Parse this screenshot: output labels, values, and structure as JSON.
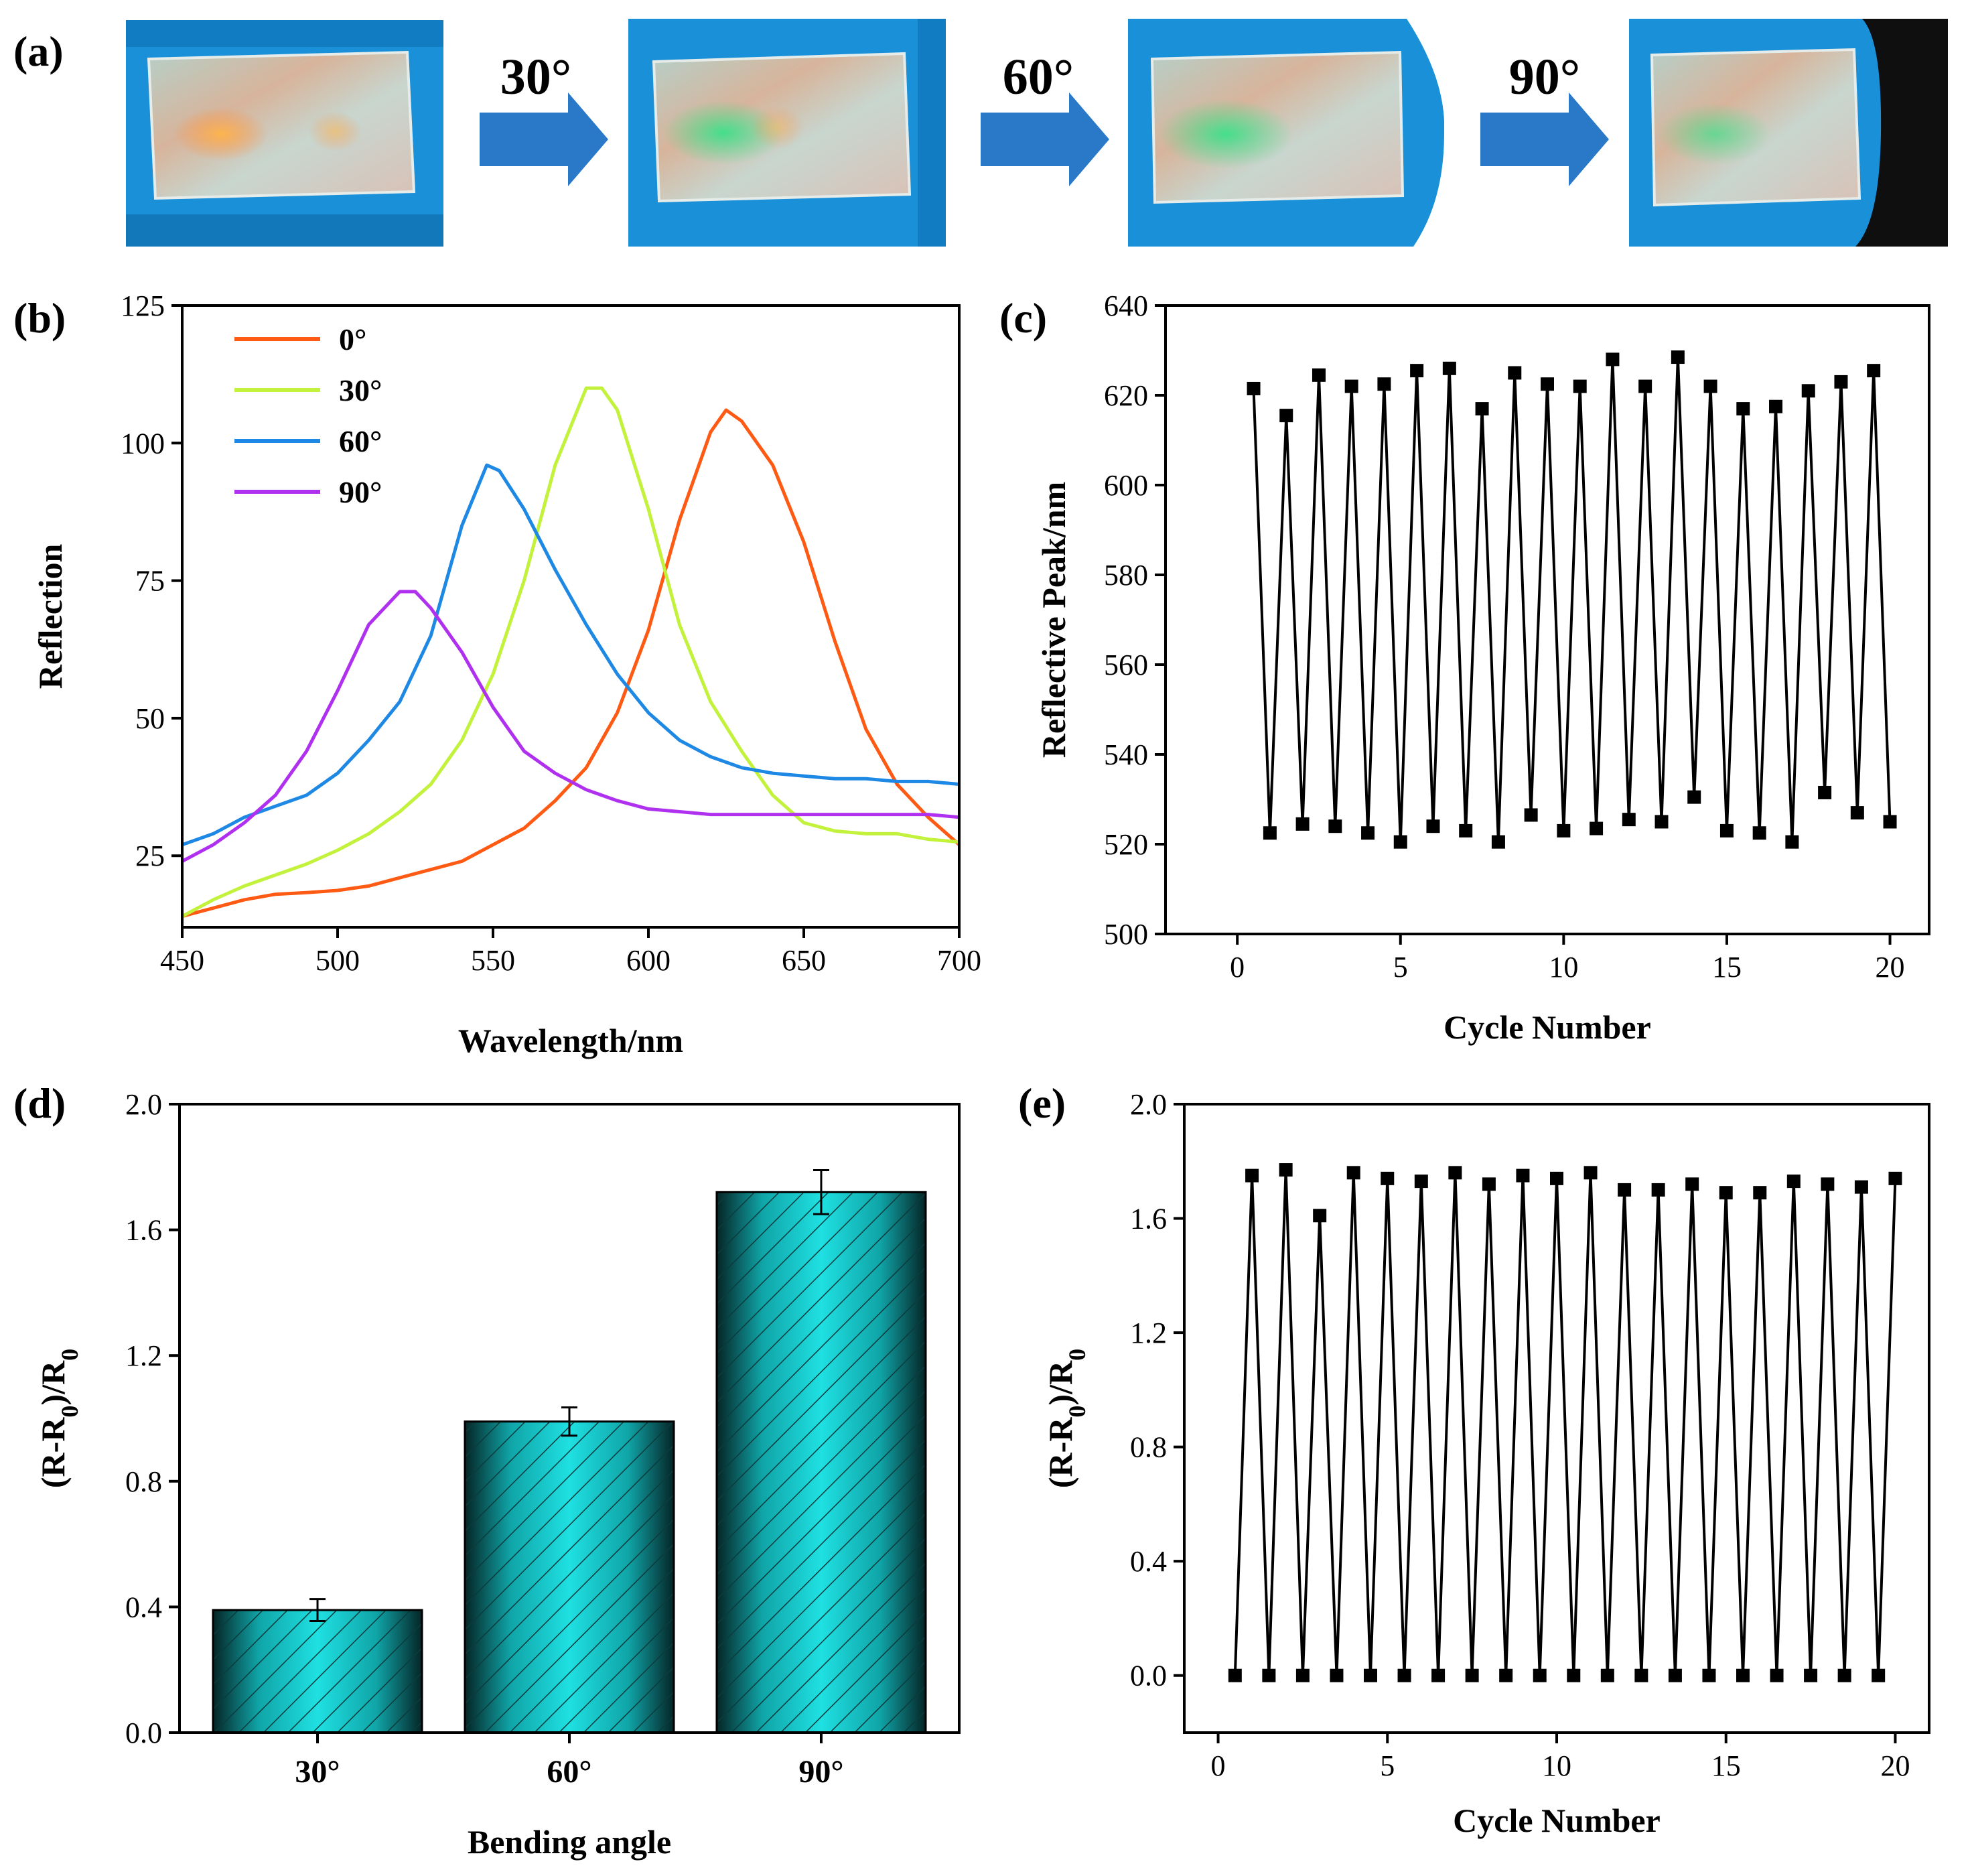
{
  "panel_a": {
    "label": "(a)",
    "arrows": [
      "30°",
      "60°",
      "90°"
    ],
    "photos": [
      "photo-0deg",
      "photo-30deg",
      "photo-60deg",
      "photo-90deg"
    ]
  },
  "colors": {
    "s0": "#ff5a14",
    "s30": "#c2f23c",
    "s60": "#1e88e5",
    "s90": "#b030f0",
    "bar": "#19c6c9",
    "arrow": "#2a78c8",
    "glove": "#1a90d8"
  },
  "chart_data": [
    {
      "id": "b",
      "label": "(b)",
      "type": "line",
      "title": "",
      "xlabel": "Wavelength/nm",
      "ylabel": "Reflection",
      "xlim": [
        450,
        700
      ],
      "ylim": [
        12,
        125
      ],
      "xticks": [
        450,
        500,
        550,
        600,
        650,
        700
      ],
      "yticks": [
        25,
        50,
        75,
        100,
        125
      ],
      "legend_position": "top-left",
      "series": [
        {
          "name": "0°",
          "color": "#ff5a14",
          "x": [
            450,
            460,
            470,
            480,
            490,
            500,
            510,
            520,
            530,
            540,
            550,
            560,
            570,
            580,
            590,
            600,
            610,
            620,
            625,
            630,
            640,
            650,
            660,
            670,
            680,
            690,
            700
          ],
          "y": [
            14,
            15.5,
            17,
            18,
            18.3,
            18.7,
            19.5,
            21,
            22.5,
            24,
            27,
            30,
            35,
            41,
            51,
            66,
            86,
            102,
            106,
            104,
            96,
            82,
            64,
            48,
            38,
            32,
            27
          ]
        },
        {
          "name": "30°",
          "color": "#c2f23c",
          "x": [
            450,
            460,
            470,
            480,
            490,
            500,
            510,
            520,
            530,
            540,
            550,
            560,
            570,
            580,
            585,
            590,
            600,
            610,
            620,
            630,
            640,
            650,
            660,
            670,
            680,
            690,
            700
          ],
          "y": [
            14,
            17,
            19.5,
            21.5,
            23.5,
            26,
            29,
            33,
            38,
            46,
            58,
            75,
            96,
            110,
            110,
            106,
            88,
            67,
            53,
            44,
            36,
            31,
            29.5,
            29,
            29,
            28,
            27.5
          ]
        },
        {
          "name": "60°",
          "color": "#1e88e5",
          "x": [
            450,
            460,
            470,
            480,
            490,
            500,
            510,
            520,
            530,
            540,
            548,
            552,
            560,
            570,
            580,
            590,
            600,
            610,
            620,
            630,
            640,
            650,
            660,
            670,
            680,
            690,
            700
          ],
          "y": [
            27,
            29,
            32,
            34,
            36,
            40,
            46,
            53,
            65,
            85,
            96,
            95,
            88,
            77,
            67,
            58,
            51,
            46,
            43,
            41,
            40,
            39.5,
            39,
            39,
            38.5,
            38.5,
            38
          ]
        },
        {
          "name": "90°",
          "color": "#b030f0",
          "x": [
            450,
            460,
            470,
            480,
            490,
            500,
            510,
            520,
            525,
            530,
            540,
            550,
            560,
            570,
            580,
            590,
            600,
            610,
            620,
            630,
            640,
            650,
            660,
            670,
            680,
            690,
            700
          ],
          "y": [
            24,
            27,
            31,
            36,
            44,
            55,
            67,
            73,
            73,
            70,
            62,
            52,
            44,
            40,
            37,
            35,
            33.5,
            33,
            32.5,
            32.5,
            32.5,
            32.5,
            32.5,
            32.5,
            32.5,
            32.5,
            32
          ]
        }
      ]
    },
    {
      "id": "c",
      "label": "(c)",
      "type": "line",
      "title": "",
      "xlabel": "Cycle Number",
      "ylabel": "Reflective Peak/nm",
      "xlim": [
        -2.2,
        21.2
      ],
      "ylim": [
        500,
        640
      ],
      "xticks": [
        0,
        5,
        10,
        15,
        20
      ],
      "yticks": [
        500,
        520,
        540,
        560,
        580,
        600,
        620,
        640
      ],
      "markers": "square",
      "x": [
        0.5,
        1,
        1.5,
        2,
        2.5,
        3,
        3.5,
        4,
        4.5,
        5,
        5.5,
        6,
        6.5,
        7,
        7.5,
        8,
        8.5,
        9,
        9.5,
        10,
        10.5,
        11,
        11.5,
        12,
        12.5,
        13,
        13.5,
        14,
        14.5,
        15,
        15.5,
        16,
        16.5,
        17,
        17.5,
        18,
        18.5,
        19,
        19.5,
        20
      ],
      "y": [
        621.5,
        522.5,
        615.5,
        524.5,
        624.5,
        524,
        622,
        522.5,
        622.5,
        520.5,
        625.5,
        524,
        626,
        523,
        617,
        520.5,
        625,
        526.5,
        622.5,
        523,
        622,
        523.5,
        628,
        525.5,
        622,
        525,
        628.5,
        530.5,
        622,
        523,
        617,
        522.5,
        617.5,
        520.5,
        621,
        531.5,
        623,
        527,
        625.5,
        525
      ]
    },
    {
      "id": "d",
      "label": "(d)",
      "type": "bar",
      "title": "",
      "xlabel": "Bending angle",
      "ylabel": "(R-R0)/R0",
      "ylim": [
        0,
        2.0
      ],
      "yticks": [
        0.0,
        0.4,
        0.8,
        1.2,
        1.6,
        2.0
      ],
      "categories": [
        "30°",
        "60°",
        "90°"
      ],
      "values": [
        0.39,
        0.99,
        1.72
      ],
      "errors": [
        0.035,
        0.045,
        0.07
      ]
    },
    {
      "id": "e",
      "label": "(e)",
      "type": "line",
      "title": "",
      "xlabel": "Cycle Number",
      "ylabel": "(R-R0)/R0",
      "xlim": [
        -1.0,
        21.0
      ],
      "ylim": [
        -0.2,
        2.0
      ],
      "xticks": [
        0,
        5,
        10,
        15,
        20
      ],
      "yticks": [
        0.0,
        0.4,
        0.8,
        1.2,
        1.6,
        2.0
      ],
      "markers": "square",
      "x": [
        0.5,
        1,
        1.5,
        2,
        2.5,
        3,
        3.5,
        4,
        4.5,
        5,
        5.5,
        6,
        6.5,
        7,
        7.5,
        8,
        8.5,
        9,
        9.5,
        10,
        10.5,
        11,
        11.5,
        12,
        12.5,
        13,
        13.5,
        14,
        14.5,
        15,
        15.5,
        16,
        16.5,
        17,
        17.5,
        18,
        18.5,
        19,
        19.5,
        20
      ],
      "y": [
        0,
        1.75,
        0,
        1.77,
        0,
        1.61,
        0,
        1.76,
        0,
        1.74,
        0,
        1.73,
        0,
        1.76,
        0,
        1.72,
        0,
        1.75,
        0,
        1.74,
        0,
        1.76,
        0,
        1.7,
        0,
        1.7,
        0,
        1.72,
        0,
        1.69,
        0,
        1.69,
        0,
        1.73,
        0,
        1.72,
        0,
        1.71,
        0,
        1.74
      ]
    }
  ]
}
